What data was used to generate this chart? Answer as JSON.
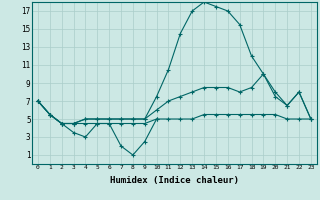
{
  "xlabel": "Humidex (Indice chaleur)",
  "xlim": [
    -0.5,
    23.5
  ],
  "ylim": [
    0,
    18
  ],
  "yticks": [
    1,
    3,
    5,
    7,
    9,
    11,
    13,
    15,
    17
  ],
  "xticks": [
    0,
    1,
    2,
    3,
    4,
    5,
    6,
    7,
    8,
    9,
    10,
    11,
    12,
    13,
    14,
    15,
    16,
    17,
    18,
    19,
    20,
    21,
    22,
    23
  ],
  "background_color": "#cce8e4",
  "grid_color": "#aaceca",
  "line_color": "#006666",
  "lines": [
    [
      7.0,
      5.5,
      4.5,
      3.5,
      3.0,
      4.5,
      4.5,
      2.0,
      1.0,
      2.5,
      5.0,
      null,
      null,
      null,
      null,
      null,
      null,
      null,
      null,
      null,
      null,
      null,
      null,
      null
    ],
    [
      7.0,
      5.5,
      4.5,
      4.5,
      5.0,
      5.0,
      5.0,
      5.0,
      5.0,
      5.0,
      7.5,
      10.5,
      14.5,
      17.0,
      18.0,
      17.5,
      17.0,
      15.5,
      12.0,
      10.0,
      8.0,
      6.5,
      8.0,
      5.0
    ],
    [
      7.0,
      5.5,
      4.5,
      4.5,
      5.0,
      5.0,
      5.0,
      5.0,
      5.0,
      5.0,
      6.0,
      7.0,
      7.5,
      8.0,
      8.5,
      8.5,
      8.5,
      8.0,
      8.5,
      10.0,
      7.5,
      6.5,
      8.0,
      5.0
    ],
    [
      7.0,
      5.5,
      4.5,
      4.5,
      4.5,
      4.5,
      4.5,
      4.5,
      4.5,
      4.5,
      5.0,
      5.0,
      5.0,
      5.0,
      5.5,
      5.5,
      5.5,
      5.5,
      5.5,
      5.5,
      5.5,
      5.0,
      5.0,
      5.0
    ]
  ]
}
